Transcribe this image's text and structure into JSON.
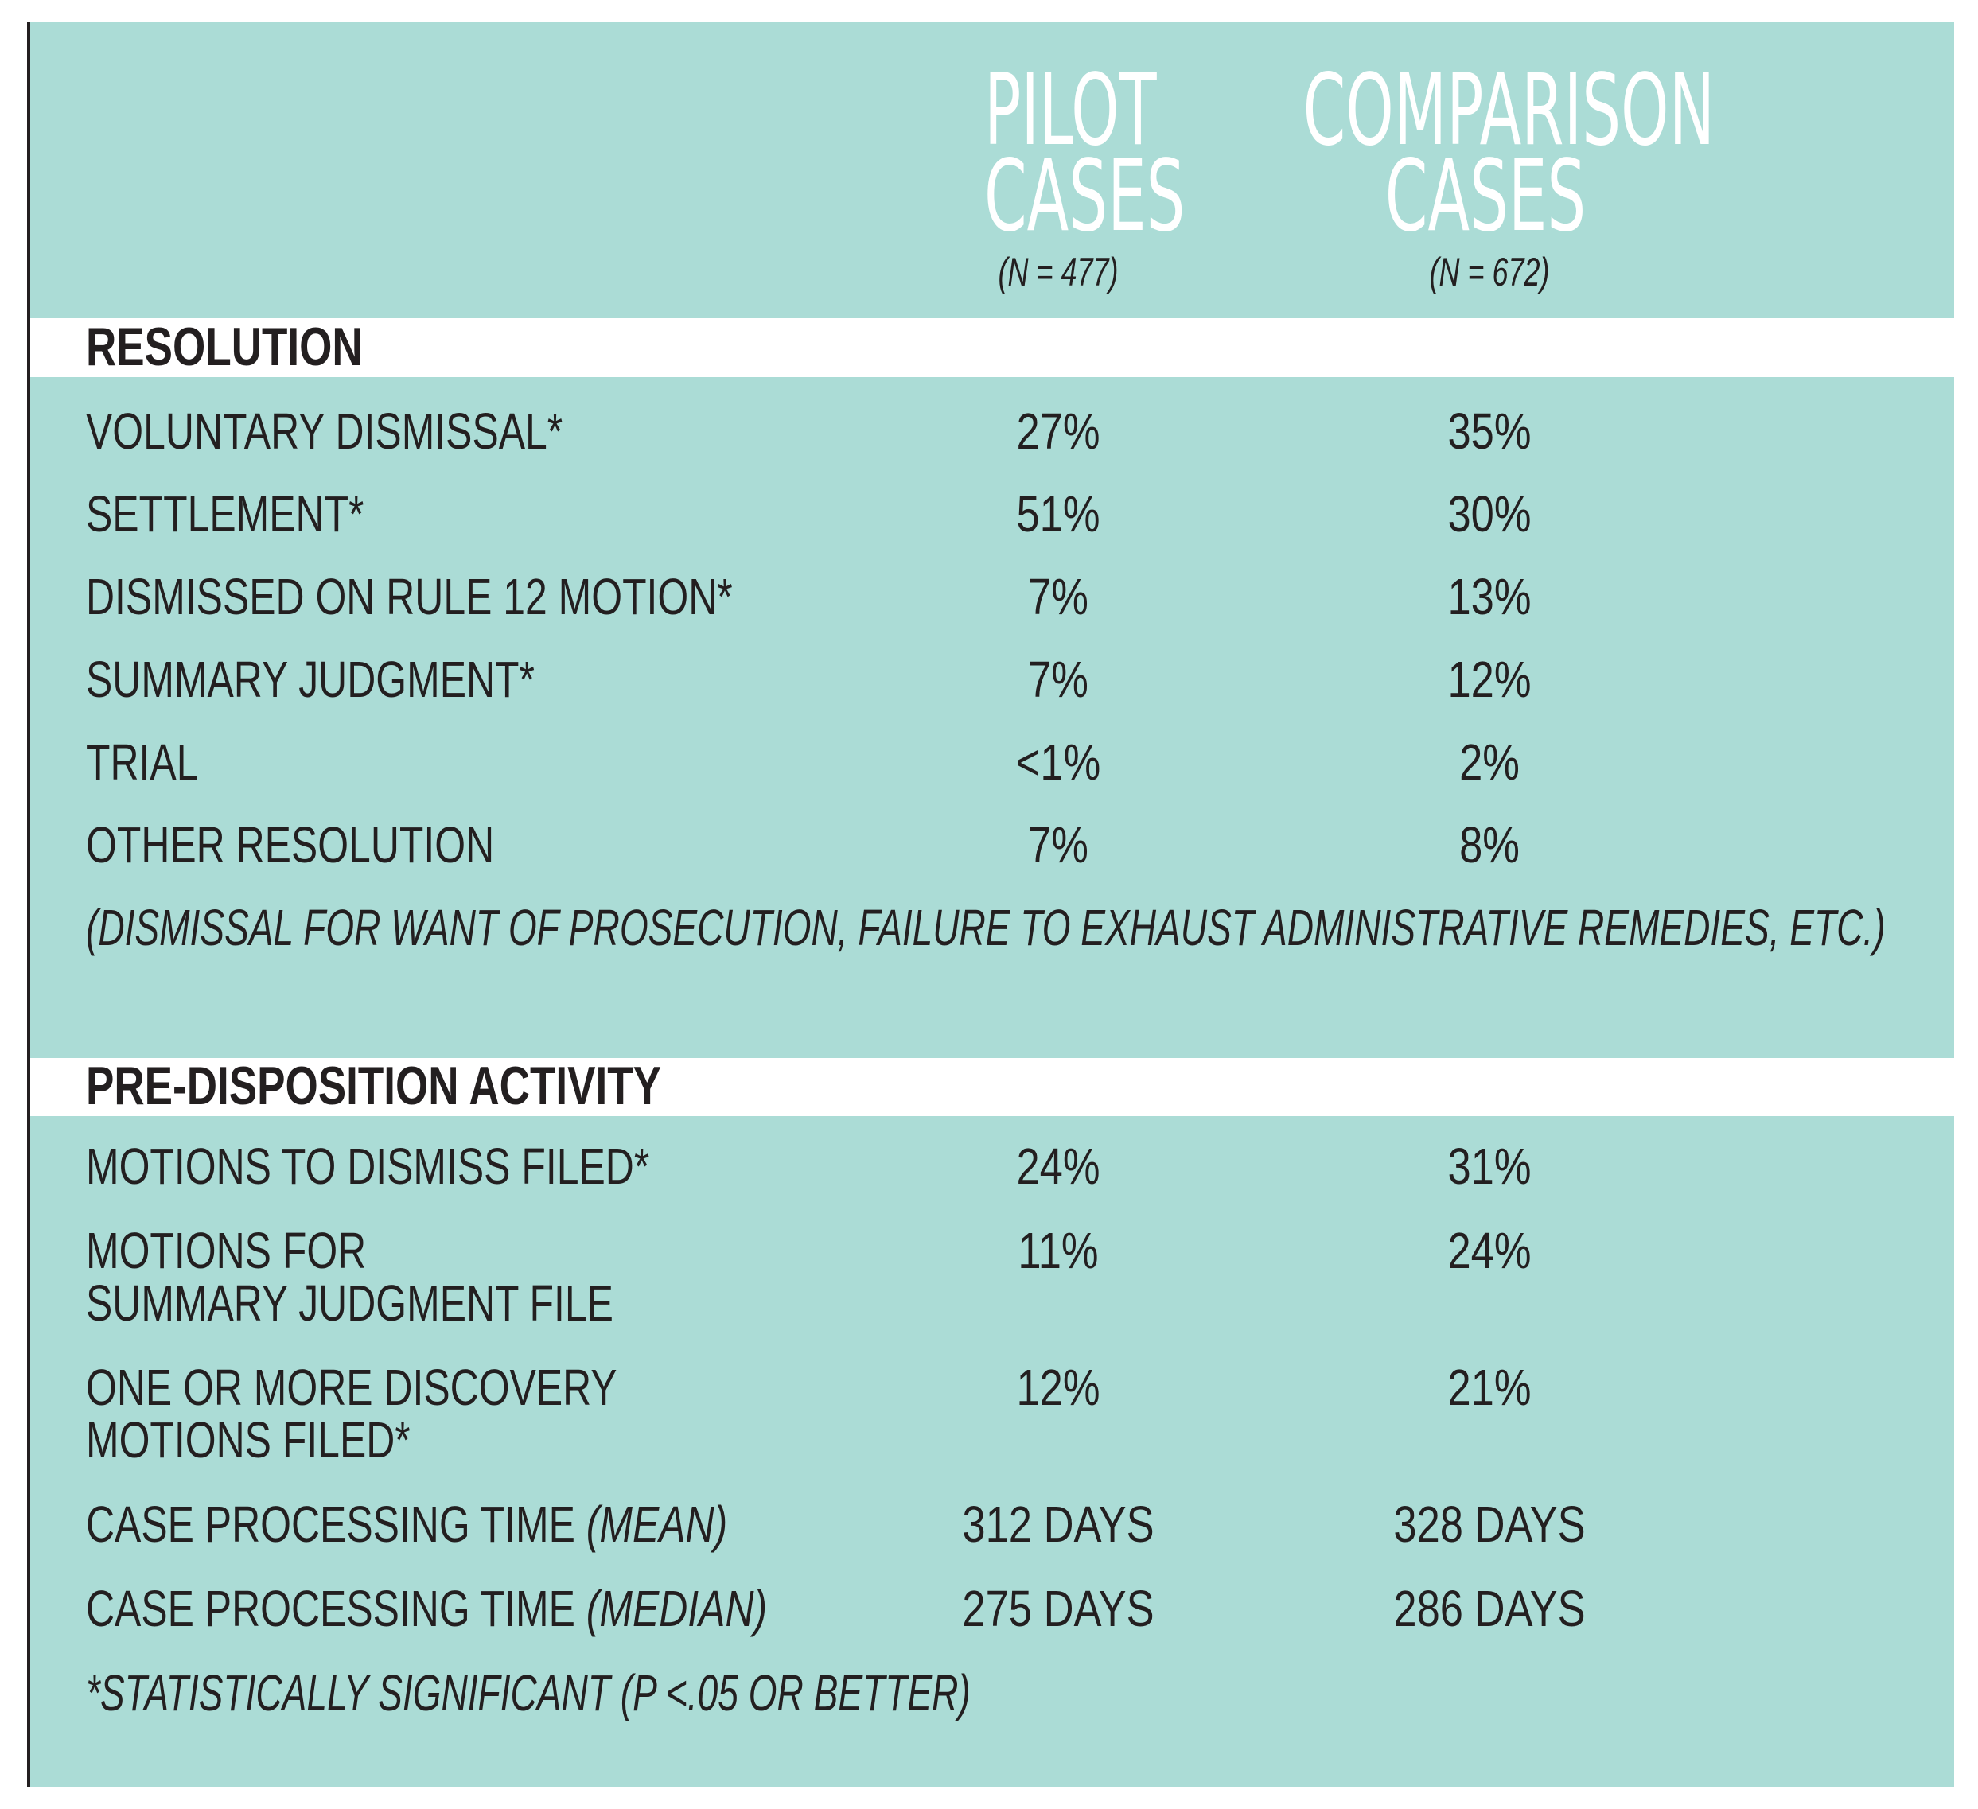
{
  "chart_data": {
    "type": "table",
    "columns": [
      {
        "title_line1": "PILOT",
        "title_line2": "CASES",
        "n": "(N = 477)"
      },
      {
        "title_line1": "COMPARISON",
        "title_line2": "CASES",
        "n": "(N = 672)"
      }
    ],
    "sections": [
      {
        "title": "RESOLUTION",
        "rows": [
          {
            "label": "VOLUNTARY DISMISSAL*",
            "pilot": "27%",
            "comparison": "35%"
          },
          {
            "label": "SETTLEMENT*",
            "pilot": "51%",
            "comparison": "30%"
          },
          {
            "label": "DISMISSED ON RULE 12 MOTION*",
            "pilot": "7%",
            "comparison": "13%"
          },
          {
            "label": "SUMMARY JUDGMENT*",
            "pilot": "7%",
            "comparison": "12%"
          },
          {
            "label": "TRIAL",
            "pilot": "<1%",
            "comparison": "2%"
          },
          {
            "label": "OTHER RESOLUTION",
            "pilot": "7%",
            "comparison": "8%"
          }
        ],
        "note": "(DISMISSAL FOR WANT OF PROSECUTION, FAILURE TO EXHAUST ADMINISTRATIVE REMEDIES, ETC.)"
      },
      {
        "title": "PRE-DISPOSITION ACTIVITY",
        "rows": [
          {
            "label": "MOTIONS TO DISMISS FILED*",
            "pilot": "24%",
            "comparison": "31%"
          },
          {
            "label_line1": "MOTIONS FOR",
            "label_line2": "SUMMARY JUDGMENT FILE",
            "pilot": "11%",
            "comparison": "24%"
          },
          {
            "label_line1": "ONE OR MORE DISCOVERY",
            "label_line2": "MOTIONS FILED*",
            "pilot": "12%",
            "comparison": "21%"
          },
          {
            "label": "CASE PROCESSING TIME",
            "qualifier": "(MEAN)",
            "pilot": "312 DAYS",
            "comparison": "328 DAYS"
          },
          {
            "label": "CASE PROCESSING TIME",
            "qualifier": "(MEDIAN)",
            "pilot": "275 DAYS",
            "comparison": "286 DAYS"
          }
        ]
      }
    ],
    "footnote": "*STATISTICALLY SIGNIFICANT (P <.05 OR BETTER)"
  },
  "colors": {
    "panel": "#abdcd6",
    "header_text": "#ffffff",
    "body_text": "#231f20",
    "band": "#ffffff"
  }
}
